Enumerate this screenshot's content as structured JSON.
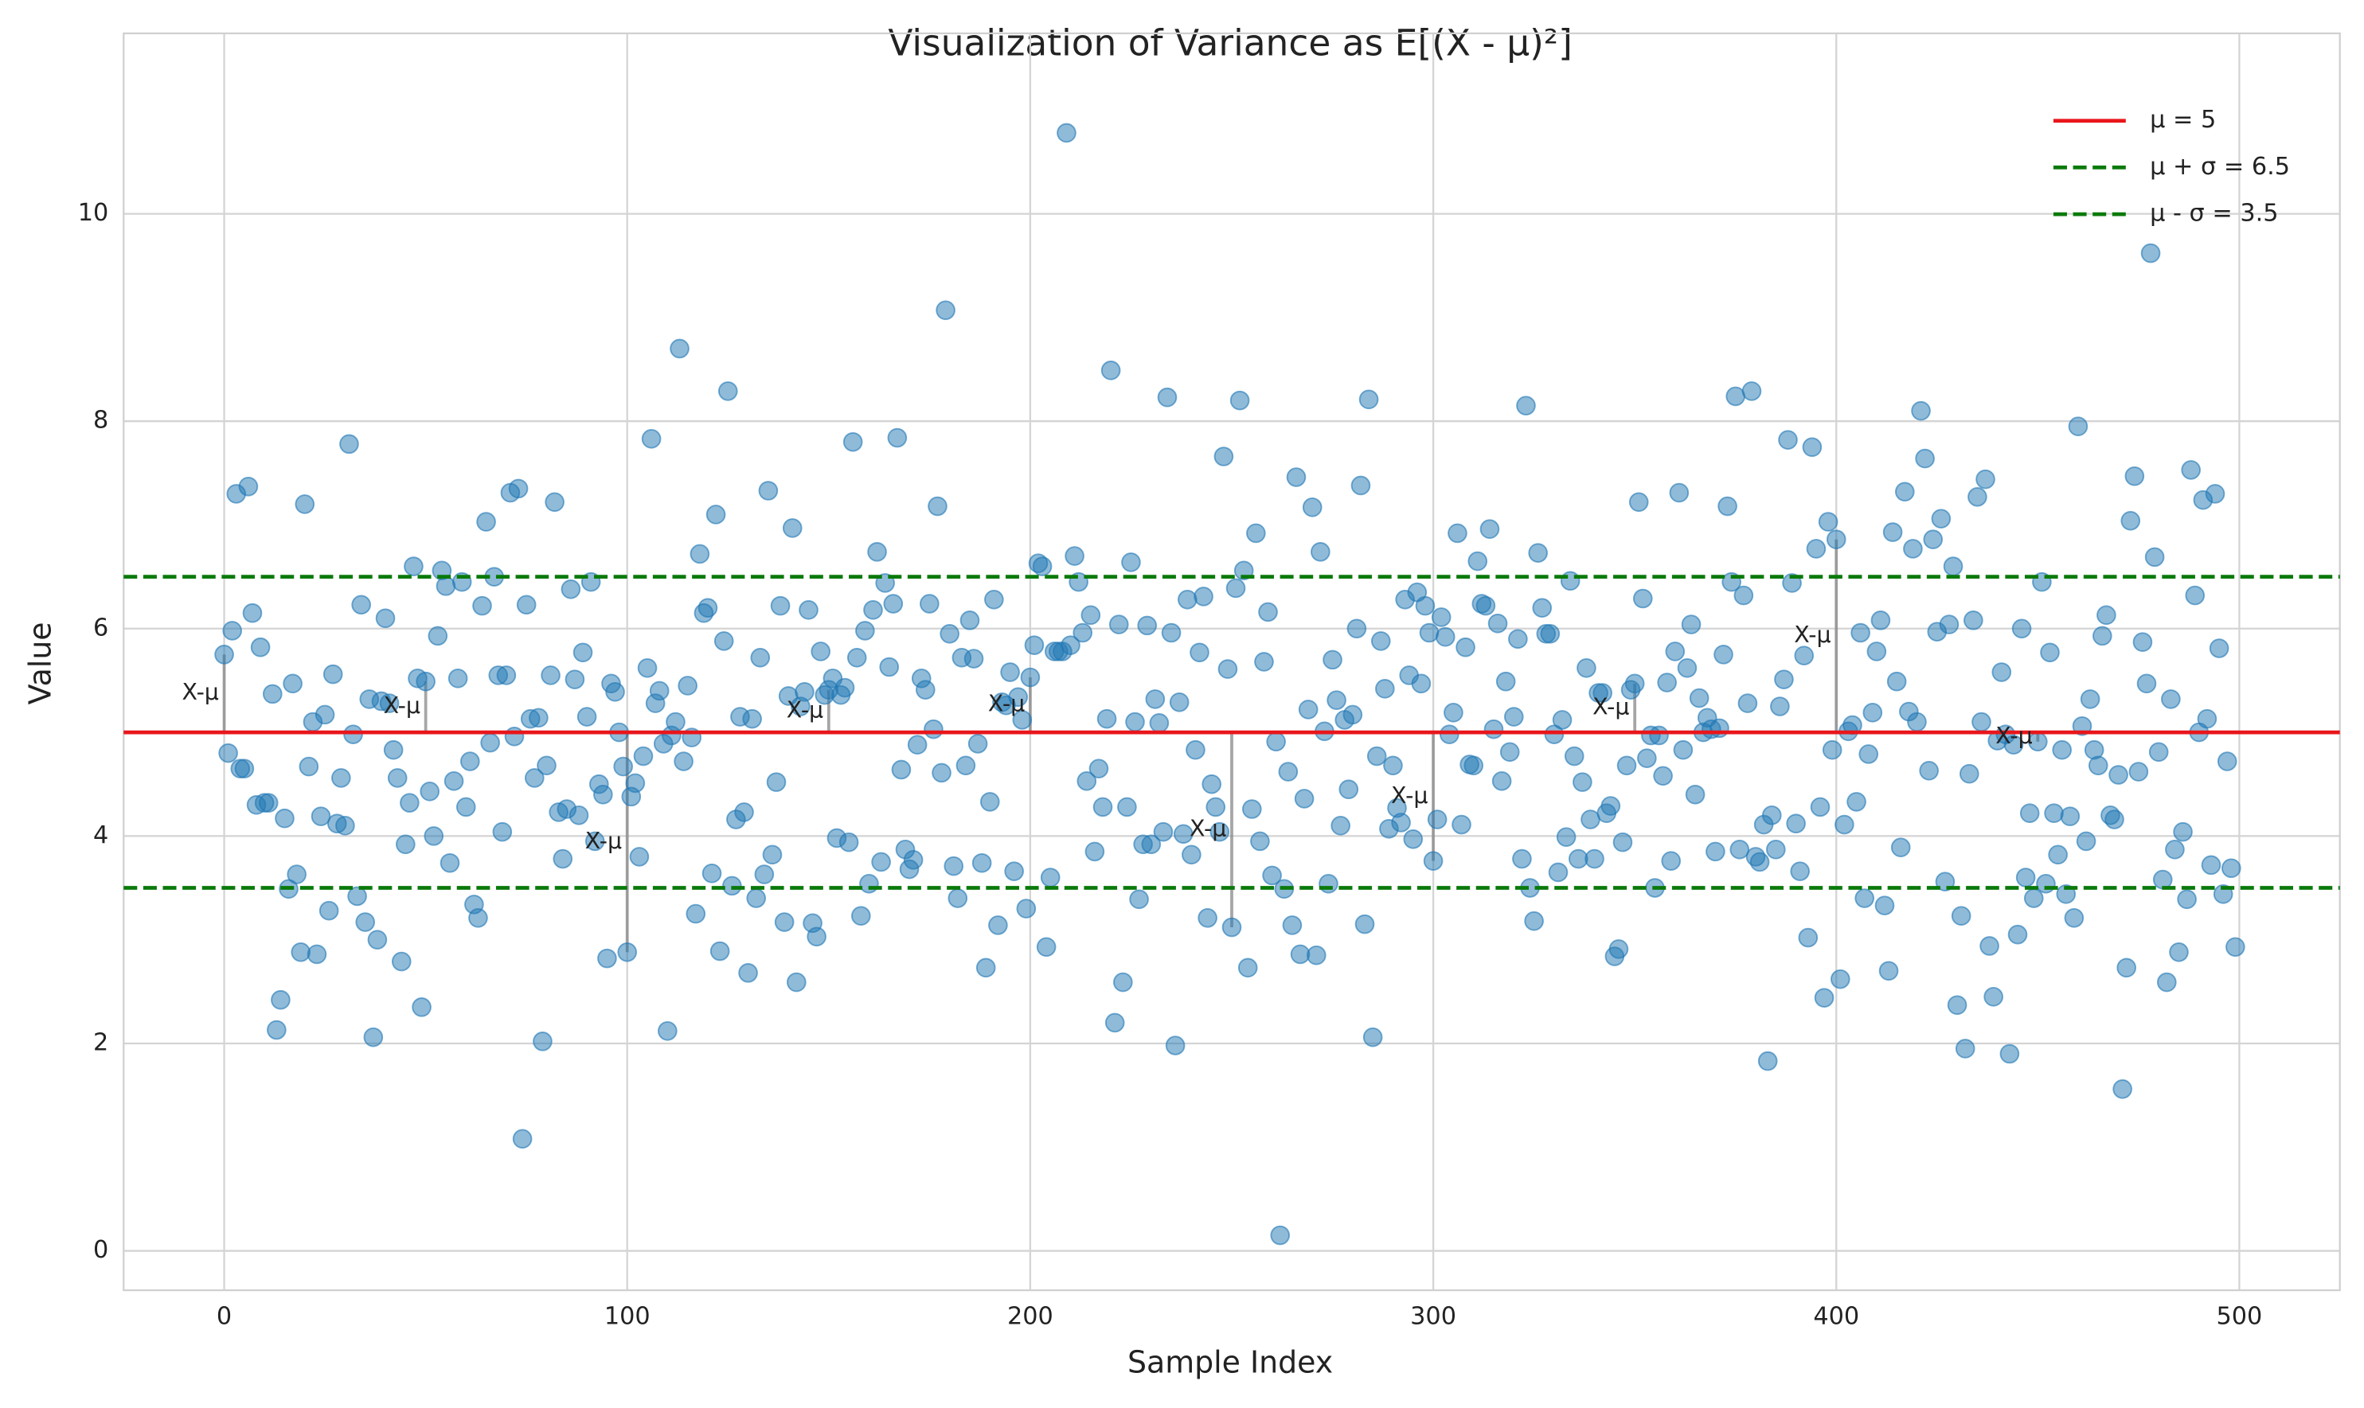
{
  "chart_data": {
    "type": "scatter",
    "title": "Visualization of Variance as E[(X - μ)²]",
    "x_label": "Sample Index",
    "y_label": "Value",
    "color": "#1f77b4",
    "grid": true,
    "legend": "upper right",
    "xlim": [
      -24.95,
      524.95
    ],
    "ylim": [
      -0.38,
      11.74
    ],
    "xticks": [
      0,
      100,
      200,
      300,
      400,
      500
    ],
    "yticks": [
      0,
      2,
      4,
      6,
      8,
      10
    ],
    "x": [
      0,
      1,
      2,
      3,
      4,
      5,
      6,
      7,
      8,
      9,
      10,
      11,
      12,
      13,
      14,
      15,
      16,
      17,
      18,
      19,
      20,
      21,
      22,
      23,
      24,
      25,
      26,
      27,
      28,
      29,
      30,
      31,
      32,
      33,
      34,
      35,
      36,
      37,
      38,
      39,
      40,
      41,
      42,
      43,
      44,
      45,
      46,
      47,
      48,
      49,
      50,
      51,
      52,
      53,
      54,
      55,
      56,
      57,
      58,
      59,
      60,
      61,
      62,
      63,
      64,
      65,
      66,
      67,
      68,
      69,
      70,
      71,
      72,
      73,
      74,
      75,
      76,
      77,
      78,
      79,
      80,
      81,
      82,
      83,
      84,
      85,
      86,
      87,
      88,
      89,
      90,
      91,
      92,
      93,
      94,
      95,
      96,
      97,
      98,
      99,
      100,
      101,
      102,
      103,
      104,
      105,
      106,
      107,
      108,
      109,
      110,
      111,
      112,
      113,
      114,
      115,
      116,
      117,
      118,
      119,
      120,
      121,
      122,
      123,
      124,
      125,
      126,
      127,
      128,
      129,
      130,
      131,
      132,
      133,
      134,
      135,
      136,
      137,
      138,
      139,
      140,
      141,
      142,
      143,
      144,
      145,
      146,
      147,
      148,
      149,
      150,
      151,
      152,
      153,
      154,
      155,
      156,
      157,
      158,
      159,
      160,
      161,
      162,
      163,
      164,
      165,
      166,
      167,
      168,
      169,
      170,
      171,
      172,
      173,
      174,
      175,
      176,
      177,
      178,
      179,
      180,
      181,
      182,
      183,
      184,
      185,
      186,
      187,
      188,
      189,
      190,
      191,
      192,
      193,
      194,
      195,
      196,
      197,
      198,
      199,
      200,
      201,
      202,
      203,
      204,
      205,
      206,
      207,
      208,
      209,
      210,
      211,
      212,
      213,
      214,
      215,
      216,
      217,
      218,
      219,
      220,
      221,
      222,
      223,
      224,
      225,
      226,
      227,
      228,
      229,
      230,
      231,
      232,
      233,
      234,
      235,
      236,
      237,
      238,
      239,
      240,
      241,
      242,
      243,
      244,
      245,
      246,
      247,
      248,
      249,
      250,
      251,
      252,
      253,
      254,
      255,
      256,
      257,
      258,
      259,
      260,
      261,
      262,
      263,
      264,
      265,
      266,
      267,
      268,
      269,
      270,
      271,
      272,
      273,
      274,
      275,
      276,
      277,
      278,
      279,
      280,
      281,
      282,
      283,
      284,
      285,
      286,
      287,
      288,
      289,
      290,
      291,
      292,
      293,
      294,
      295,
      296,
      297,
      298,
      299,
      300,
      301,
      302,
      303,
      304,
      305,
      306,
      307,
      308,
      309,
      310,
      311,
      312,
      313,
      314,
      315,
      316,
      317,
      318,
      319,
      320,
      321,
      322,
      323,
      324,
      325,
      326,
      327,
      328,
      329,
      330,
      331,
      332,
      333,
      334,
      335,
      336,
      337,
      338,
      339,
      340,
      341,
      342,
      343,
      344,
      345,
      346,
      347,
      348,
      349,
      350,
      351,
      352,
      353,
      354,
      355,
      356,
      357,
      358,
      359,
      360,
      361,
      362,
      363,
      364,
      365,
      366,
      367,
      368,
      369,
      370,
      371,
      372,
      373,
      374,
      375,
      376,
      377,
      378,
      379,
      380,
      381,
      382,
      383,
      384,
      385,
      386,
      387,
      388,
      389,
      390,
      391,
      392,
      393,
      394,
      395,
      396,
      397,
      398,
      399,
      400,
      401,
      402,
      403,
      404,
      405,
      406,
      407,
      408,
      409,
      410,
      411,
      412,
      413,
      414,
      415,
      416,
      417,
      418,
      419,
      420,
      421,
      422,
      423,
      424,
      425,
      426,
      427,
      428,
      429,
      430,
      431,
      432,
      433,
      434,
      435,
      436,
      437,
      438,
      439,
      440,
      441,
      442,
      443,
      444,
      445,
      446,
      447,
      448,
      449,
      450,
      451,
      452,
      453,
      454,
      455,
      456,
      457,
      458,
      459,
      460,
      461,
      462,
      463,
      464,
      465,
      466,
      467,
      468,
      469,
      470,
      471,
      472,
      473,
      474,
      475,
      476,
      477,
      478,
      479,
      480,
      481,
      482,
      483,
      484,
      485,
      486,
      487,
      488,
      489,
      490,
      491,
      492,
      493,
      494,
      495,
      496,
      497,
      498,
      499
    ],
    "values": [
      5.75,
      4.8,
      5.98,
      7.3,
      4.65,
      4.65,
      7.37,
      6.15,
      4.3,
      5.82,
      4.32,
      4.32,
      5.37,
      2.13,
      2.42,
      4.17,
      3.49,
      5.47,
      3.63,
      2.88,
      7.2,
      4.67,
      5.1,
      2.86,
      4.19,
      5.17,
      3.28,
      5.56,
      4.12,
      4.56,
      4.1,
      7.78,
      4.98,
      3.42,
      6.23,
      3.17,
      5.32,
      2.06,
      3.0,
      5.3,
      6.1,
      5.28,
      4.83,
      4.56,
      2.79,
      3.92,
      4.32,
      6.6,
      5.52,
      2.35,
      5.49,
      4.43,
      4.0,
      5.93,
      6.56,
      6.41,
      3.74,
      4.53,
      5.52,
      6.45,
      4.28,
      4.72,
      3.34,
      3.21,
      6.22,
      7.03,
      4.9,
      6.5,
      5.55,
      4.04,
      5.55,
      7.31,
      4.96,
      7.35,
      1.08,
      6.23,
      5.13,
      4.56,
      5.14,
      2.02,
      4.68,
      5.55,
      7.22,
      4.23,
      3.78,
      4.26,
      6.38,
      5.51,
      4.2,
      5.77,
      5.15,
      6.45,
      3.95,
      4.5,
      4.4,
      2.82,
      5.47,
      5.39,
      5.0,
      4.67,
      2.88,
      4.38,
      4.51,
      3.8,
      4.77,
      5.62,
      7.83,
      5.28,
      5.4,
      4.89,
      2.12,
      4.97,
      5.1,
      8.7,
      4.72,
      5.45,
      4.95,
      3.25,
      6.72,
      6.15,
      6.2,
      3.64,
      7.1,
      2.89,
      5.88,
      8.29,
      3.52,
      4.16,
      5.15,
      4.23,
      2.68,
      5.13,
      3.4,
      5.72,
      3.63,
      7.33,
      3.82,
      4.52,
      6.22,
      3.17,
      5.35,
      6.97,
      2.59,
      5.25,
      5.39,
      6.18,
      3.16,
      3.03,
      5.78,
      5.36,
      5.41,
      5.52,
      3.98,
      5.36,
      5.43,
      3.94,
      7.8,
      5.72,
      3.23,
      5.98,
      3.54,
      6.18,
      6.74,
      3.75,
      6.44,
      5.63,
      6.24,
      7.84,
      4.64,
      3.87,
      3.68,
      3.77,
      4.88,
      5.52,
      5.41,
      6.24,
      5.03,
      7.18,
      4.61,
      9.07,
      5.95,
      3.71,
      3.4,
      5.72,
      4.68,
      6.08,
      5.71,
      4.89,
      3.74,
      2.73,
      4.33,
      6.28,
      3.14,
      5.29,
      5.26,
      5.58,
      3.66,
      5.34,
      5.12,
      3.3,
      5.53,
      5.84,
      6.63,
      6.6,
      2.93,
      3.6,
      5.78,
      5.78,
      5.78,
      10.78,
      5.84,
      6.7,
      6.45,
      5.96,
      4.53,
      6.13,
      3.85,
      4.65,
      4.28,
      5.13,
      8.49,
      2.2,
      6.04,
      2.59,
      4.28,
      6.64,
      5.1,
      3.39,
      3.92,
      6.03,
      3.92,
      5.32,
      5.09,
      4.04,
      8.23,
      5.96,
      1.98,
      5.29,
      4.02,
      6.28,
      3.82,
      4.83,
      5.77,
      6.31,
      3.21,
      4.5,
      4.28,
      4.04,
      7.66,
      5.61,
      3.12,
      6.39,
      8.2,
      6.56,
      2.73,
      4.26,
      6.92,
      3.95,
      5.68,
      6.16,
      3.62,
      4.91,
      0.15,
      3.49,
      4.62,
      3.14,
      7.46,
      2.86,
      4.36,
      5.22,
      7.17,
      2.85,
      6.74,
      5.01,
      3.54,
      5.7,
      5.31,
      4.1,
      5.12,
      4.45,
      5.17,
      6.0,
      7.38,
      3.15,
      8.21,
      2.06,
      4.77,
      5.88,
      5.42,
      4.07,
      4.68,
      4.27,
      4.13,
      6.28,
      5.55,
      3.97,
      6.35,
      5.47,
      6.22,
      5.96,
      3.76,
      4.16,
      6.11,
      5.92,
      4.98,
      5.19,
      6.92,
      4.11,
      5.82,
      4.69,
      4.68,
      6.65,
      6.24,
      6.22,
      6.96,
      5.03,
      6.05,
      4.53,
      5.49,
      4.81,
      5.15,
      5.9,
      3.78,
      8.15,
      3.5,
      3.18,
      6.73,
      6.2,
      5.95,
      5.95,
      4.98,
      3.65,
      5.12,
      3.99,
      6.46,
      4.77,
      3.78,
      4.52,
      5.62,
      4.16,
      3.78,
      5.38,
      5.38,
      4.22,
      4.29,
      2.84,
      2.91,
      3.94,
      4.68,
      5.41,
      5.47,
      7.22,
      6.29,
      4.75,
      4.97,
      3.5,
      4.97,
      4.58,
      5.48,
      3.76,
      5.78,
      7.31,
      4.83,
      5.62,
      6.04,
      4.4,
      5.33,
      5.0,
      5.14,
      5.03,
      3.85,
      5.04,
      5.75,
      7.18,
      6.45,
      8.24,
      3.87,
      6.32,
      5.28,
      8.29,
      3.8,
      3.75,
      4.11,
      1.83,
      4.2,
      3.87,
      5.25,
      5.51,
      7.82,
      6.44,
      4.12,
      3.66,
      5.74,
      3.02,
      7.75,
      6.77,
      4.28,
      2.44,
      7.03,
      4.83,
      6.86,
      2.62,
      4.11,
      5.01,
      5.07,
      4.33,
      5.96,
      3.4,
      4.79,
      5.19,
      5.78,
      6.08,
      3.33,
      2.7,
      6.93,
      5.49,
      3.89,
      7.32,
      5.2,
      6.77,
      5.1,
      8.1,
      7.64,
      4.63,
      6.86,
      5.97,
      7.06,
      3.56,
      6.04,
      6.6,
      2.37,
      3.23,
      1.95,
      4.6,
      6.08,
      7.27,
      5.1,
      7.44,
      2.94,
      2.45,
      4.92,
      5.58,
      4.98,
      1.9,
      4.88,
      3.05,
      6.0,
      3.6,
      4.22,
      3.4,
      4.91,
      6.45,
      3.54,
      5.77,
      4.22,
      3.82,
      4.83,
      3.44,
      4.19,
      3.21,
      7.95,
      5.06,
      3.95,
      5.32,
      4.83,
      4.68,
      5.93,
      6.13,
      4.2,
      4.16,
      4.59,
      1.56,
      2.73,
      7.04,
      7.47,
      4.62,
      5.87,
      5.47,
      9.62,
      6.69,
      4.81,
      3.58,
      2.59,
      5.32,
      3.87,
      2.88,
      4.04,
      3.39,
      7.53,
      6.32,
      5.0,
      7.24,
      5.13,
      3.72,
      7.3,
      5.81,
      3.44,
      4.72,
      3.69,
      2.93
    ],
    "hlines": [
      {
        "name": "μ = 5",
        "value": 5,
        "color": "#e8161b",
        "dash": false
      },
      {
        "name": "μ + σ = 6.5",
        "value": 6.5,
        "color": "#0a7a0a",
        "dash": true
      },
      {
        "name": "μ - σ = 3.5",
        "value": 3.5,
        "color": "#0a7a0a",
        "dash": true
      }
    ],
    "annotations": [
      {
        "x": 0,
        "text": "X-μ"
      },
      {
        "x": 50,
        "text": "X-μ"
      },
      {
        "x": 100,
        "text": "X-μ"
      },
      {
        "x": 150,
        "text": "X-μ"
      },
      {
        "x": 200,
        "text": "X-μ"
      },
      {
        "x": 250,
        "text": "X-μ"
      },
      {
        "x": 300,
        "text": "X-μ"
      },
      {
        "x": 350,
        "text": "X-μ"
      },
      {
        "x": 400,
        "text": "X-μ"
      },
      {
        "x": 450,
        "text": "X-μ"
      }
    ]
  }
}
